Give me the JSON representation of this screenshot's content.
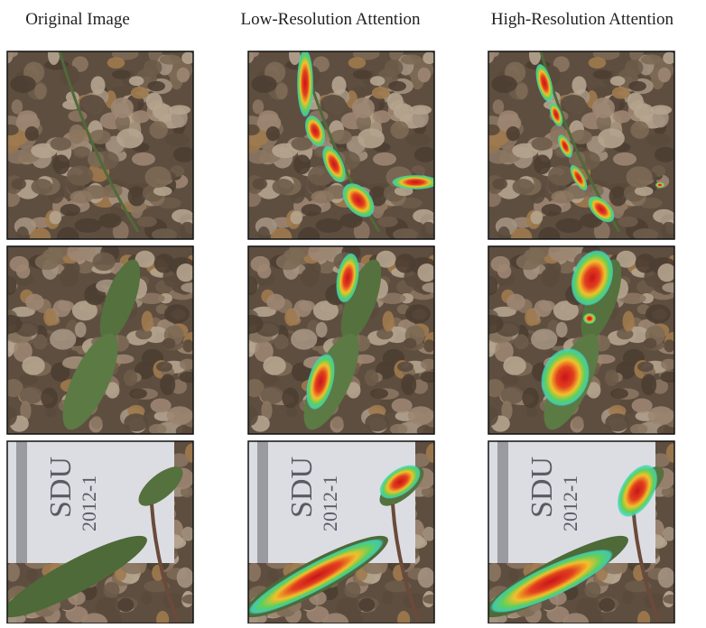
{
  "columns": [
    "Original Image",
    "Low-Resolution Attention",
    "High-Resolution Attention"
  ],
  "photo_texts": [
    "SDU",
    "2012-1"
  ]
}
